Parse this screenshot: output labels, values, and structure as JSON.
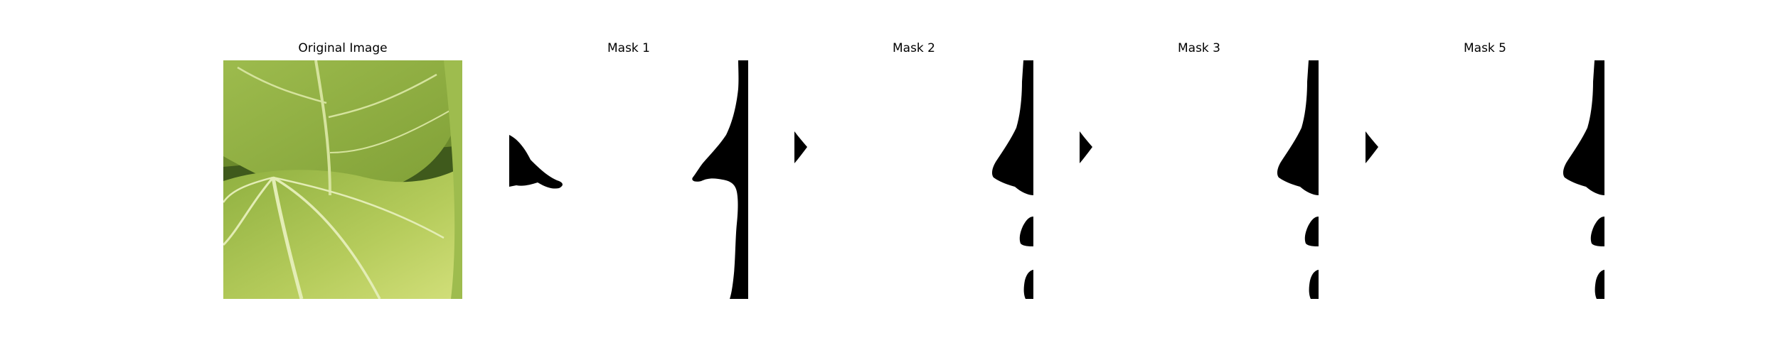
{
  "panels": [
    {
      "title": "Original Image",
      "kind": "photo",
      "subject": "leaf-photo"
    },
    {
      "title": "Mask 1",
      "kind": "mask"
    },
    {
      "title": "Mask 2",
      "kind": "mask"
    },
    {
      "title": "Mask 3",
      "kind": "mask"
    },
    {
      "title": "Mask 5",
      "kind": "mask"
    }
  ],
  "colors": {
    "background": "#ffffff",
    "mask_fill": "#000000",
    "leaf_light": "#a9c35a",
    "leaf_mid": "#8aa83f",
    "leaf_dark": "#5f7d26",
    "vein": "#d9e6a6",
    "leaf_yellow": "#c8d86a"
  }
}
